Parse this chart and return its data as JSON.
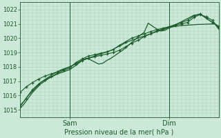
{
  "bg_color": "#cce8d8",
  "grid_color": "#aacfba",
  "line_color": "#1a5c2a",
  "text_color": "#1a5c2a",
  "xlabel": "Pression niveau de la mer( hPa )",
  "ylim": [
    1014.5,
    1022.5
  ],
  "yticks": [
    1015,
    1016,
    1017,
    1018,
    1019,
    1020,
    1021,
    1022
  ],
  "xlim": [
    0,
    96
  ],
  "xtick_positions": [
    24,
    72
  ],
  "xtick_labels": [
    "Sam",
    "Dim"
  ],
  "vline_positions": [
    24,
    72
  ],
  "line1_x": [
    0,
    2,
    4,
    6,
    8,
    10,
    12,
    14,
    16,
    18,
    20,
    22,
    24,
    26,
    28,
    30,
    32,
    34,
    36,
    38,
    40,
    42,
    44,
    46,
    48,
    50,
    52,
    54,
    56,
    58,
    60,
    62,
    64,
    66,
    68,
    70,
    72,
    74,
    76,
    78,
    80,
    82,
    84,
    86,
    88,
    90,
    92,
    94,
    96
  ],
  "line1_y": [
    1015.3,
    1015.6,
    1016.0,
    1016.3,
    1016.6,
    1016.9,
    1017.1,
    1017.3,
    1017.5,
    1017.65,
    1017.8,
    1017.9,
    1018.0,
    1018.15,
    1018.3,
    1018.45,
    1018.55,
    1018.65,
    1018.75,
    1018.85,
    1018.95,
    1019.05,
    1019.15,
    1019.3,
    1019.45,
    1019.6,
    1019.75,
    1019.85,
    1019.95,
    1020.05,
    1020.15,
    1020.25,
    1020.35,
    1020.45,
    1020.55,
    1020.65,
    1020.75,
    1020.8,
    1020.85,
    1020.88,
    1020.9,
    1020.92,
    1020.94,
    1020.96,
    1020.97,
    1020.98,
    1020.99,
    1021.0,
    1020.75
  ],
  "line2_x": [
    0,
    2,
    4,
    6,
    8,
    10,
    12,
    14,
    16,
    18,
    20,
    22,
    24,
    26,
    28,
    30,
    32,
    34,
    36,
    38,
    40,
    42,
    44,
    46,
    48,
    50,
    52,
    54,
    56,
    58,
    60,
    62,
    64,
    66,
    68,
    70,
    72,
    74,
    76,
    78,
    80,
    82,
    84,
    86,
    88,
    90,
    92,
    94,
    96
  ],
  "line2_y": [
    1015.1,
    1015.4,
    1015.8,
    1016.2,
    1016.5,
    1016.8,
    1017.0,
    1017.2,
    1017.35,
    1017.5,
    1017.6,
    1017.7,
    1017.8,
    1018.0,
    1018.2,
    1018.45,
    1018.6,
    1018.5,
    1018.35,
    1018.2,
    1018.25,
    1018.45,
    1018.6,
    1018.8,
    1019.0,
    1019.2,
    1019.45,
    1019.7,
    1019.95,
    1020.2,
    1020.4,
    1021.05,
    1020.85,
    1020.65,
    1020.5,
    1020.55,
    1020.7,
    1020.85,
    1021.0,
    1021.15,
    1021.3,
    1021.45,
    1021.6,
    1021.65,
    1021.6,
    1021.4,
    1021.2,
    1021.05,
    1020.65
  ],
  "line3_x": [
    0,
    3,
    6,
    9,
    12,
    15,
    18,
    21,
    24,
    27,
    30,
    33,
    36,
    39,
    42,
    45,
    48,
    51,
    54,
    57,
    60,
    63,
    66,
    69,
    72,
    75,
    78,
    81,
    84,
    87,
    90,
    93,
    96
  ],
  "line3_y": [
    1016.2,
    1016.6,
    1016.9,
    1017.15,
    1017.35,
    1017.5,
    1017.65,
    1017.8,
    1018.0,
    1018.2,
    1018.45,
    1018.6,
    1018.7,
    1018.8,
    1018.9,
    1019.0,
    1019.15,
    1019.4,
    1019.65,
    1019.85,
    1020.1,
    1020.3,
    1020.5,
    1020.65,
    1020.8,
    1020.9,
    1021.0,
    1021.1,
    1021.45,
    1021.65,
    1021.5,
    1021.25,
    1020.7
  ],
  "line4_x": [
    0,
    3,
    6,
    9,
    12,
    15,
    18,
    21,
    24,
    27,
    30,
    33,
    36,
    39,
    42,
    45,
    48,
    51,
    54,
    57,
    60,
    63,
    66,
    69,
    72,
    75,
    78,
    81,
    84,
    87,
    90,
    93,
    96
  ],
  "line4_y": [
    1015.2,
    1015.8,
    1016.4,
    1016.8,
    1017.1,
    1017.3,
    1017.55,
    1017.75,
    1017.9,
    1018.3,
    1018.55,
    1018.75,
    1018.85,
    1018.95,
    1019.05,
    1019.2,
    1019.5,
    1019.75,
    1020.0,
    1020.15,
    1020.3,
    1020.45,
    1020.6,
    1020.7,
    1020.8,
    1020.95,
    1021.1,
    1021.25,
    1021.55,
    1021.7,
    1021.4,
    1021.1,
    1020.85
  ]
}
